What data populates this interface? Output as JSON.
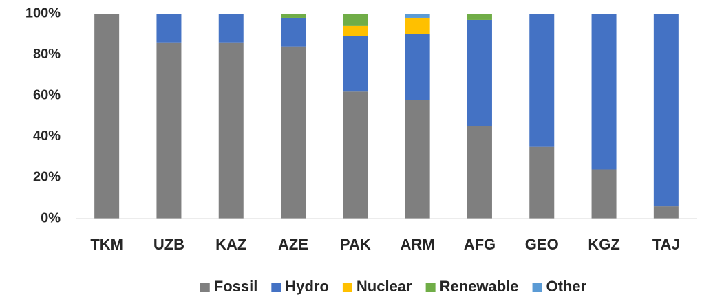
{
  "chart_data": {
    "type": "stacked_bar",
    "categories": [
      "TKM",
      "UZB",
      "KAZ",
      "AZE",
      "PAK",
      "ARM",
      "AFG",
      "GEO",
      "KGZ",
      "TAJ"
    ],
    "series": [
      {
        "name": "Fossil",
        "color": "#7f7f7f",
        "values": [
          100,
          86,
          86,
          84,
          62,
          58,
          45,
          35,
          24,
          6
        ]
      },
      {
        "name": "Hydro",
        "color": "#4472c4",
        "values": [
          0,
          14,
          14,
          14,
          27,
          32,
          52,
          65,
          76,
          94
        ]
      },
      {
        "name": "Nuclear",
        "color": "#ffc000",
        "values": [
          0,
          0,
          0,
          0,
          5,
          8,
          0,
          0,
          0,
          0
        ]
      },
      {
        "name": "Renewable",
        "color": "#70ad47",
        "values": [
          0,
          0,
          0,
          2,
          6,
          0,
          3,
          0,
          0,
          0
        ]
      },
      {
        "name": "Other",
        "color": "#5b9bd5",
        "values": [
          0,
          0,
          0,
          0,
          0,
          2,
          0,
          0,
          0,
          0
        ]
      }
    ],
    "ylim": [
      0,
      100
    ],
    "yticks": [
      {
        "value": 0,
        "label": "0%"
      },
      {
        "value": 20,
        "label": "20%"
      },
      {
        "value": 40,
        "label": "40%"
      },
      {
        "value": 60,
        "label": "60%"
      },
      {
        "value": 80,
        "label": "80%"
      },
      {
        "value": 100,
        "label": "100%"
      }
    ],
    "legend": "bottom"
  }
}
